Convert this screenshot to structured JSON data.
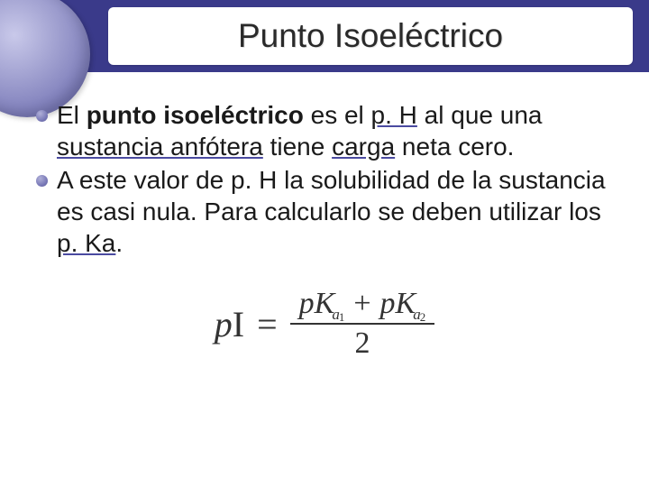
{
  "slide": {
    "title": "Punto Isoeléctrico",
    "bullets": [
      {
        "pre": "El ",
        "bold": "punto isoeléctrico",
        "mid1": " es el ",
        "link1": "p. H",
        "mid2": " al que una ",
        "link2": "sustancia anfótera",
        "mid3": " tiene ",
        "link3": "carga",
        "post": " neta cero."
      },
      {
        "pre": " A este valor de p. H la solubilidad de la sustancia es casi nula. Para calcularlo se deben utilizar los ",
        "link1": "p. Ka",
        "post": "."
      }
    ],
    "formula": {
      "lhs_p": "p",
      "lhs_I": "I",
      "eq": "=",
      "num_pK": "pK",
      "sub_a": "a",
      "sub1": "1",
      "plus": "+",
      "sub2": "2",
      "den": "2"
    },
    "colors": {
      "header": "#3a3a8a",
      "accent": "#7a7ab8",
      "text": "#1a1a1a",
      "link_underline": "#4a4aa0",
      "background": "#ffffff"
    }
  }
}
